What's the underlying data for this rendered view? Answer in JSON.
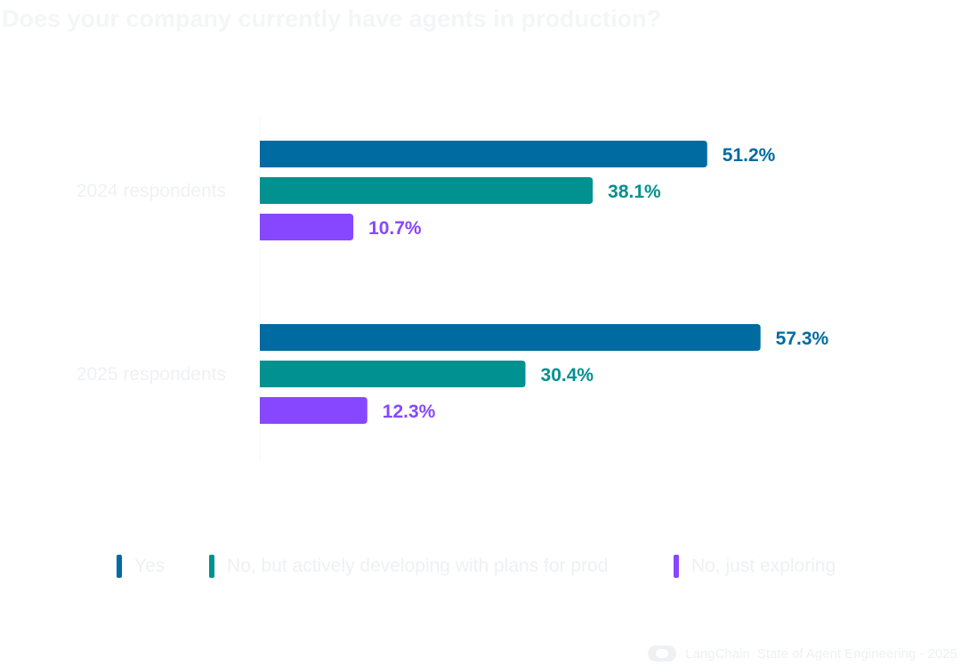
{
  "chart_data": {
    "type": "bar",
    "orientation": "horizontal",
    "title": "Does your company currently have agents in production?",
    "categories": [
      "2024 respondents",
      "2025 respondents"
    ],
    "series": [
      {
        "name": "Yes",
        "values": [
          51.2,
          57.3
        ],
        "labels": [
          "51.2%",
          "57.3%"
        ],
        "color": "#006ba1"
      },
      {
        "name": "No, but actively developing with plans for prod",
        "values": [
          38.1,
          30.4
        ],
        "labels": [
          "38.1%",
          "30.4%"
        ],
        "color": "#009190"
      },
      {
        "name": "No, just exploring",
        "values": [
          10.7,
          12.3
        ],
        "labels": [
          "10.7%",
          "12.3%"
        ],
        "color": "#8747ff"
      }
    ],
    "xlim": [
      0,
      100
    ],
    "grid": false,
    "legend_position": "bottom"
  },
  "footer": {
    "brand": "LangChain",
    "text": "State of Agent Engineering - 2025"
  }
}
